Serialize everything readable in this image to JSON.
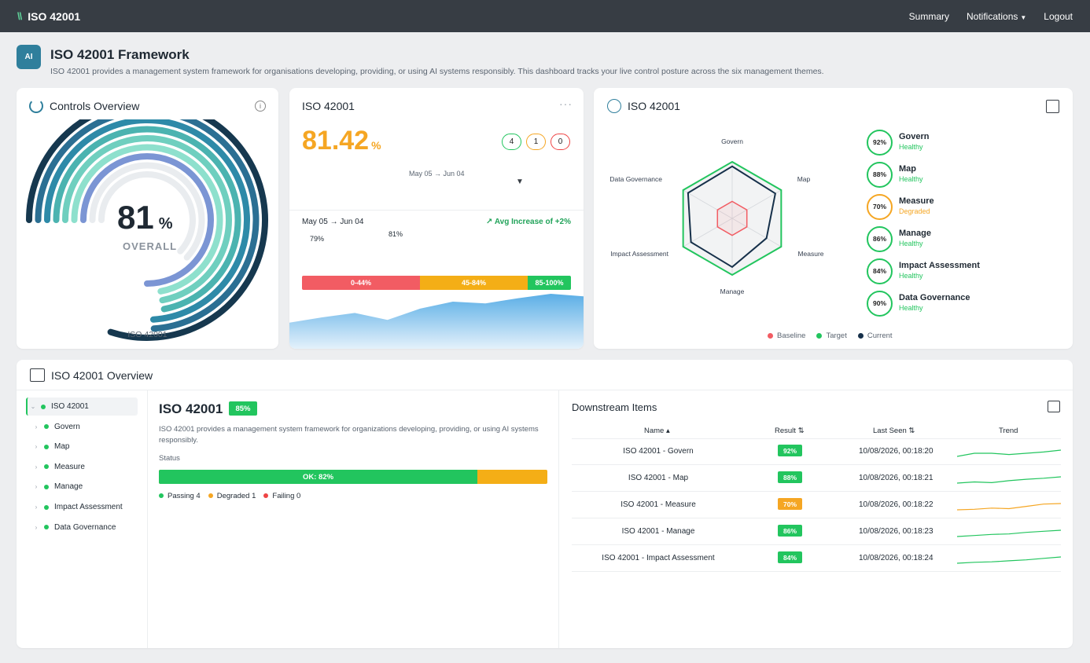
{
  "app": {
    "title": "ISO 42001",
    "nav": [
      "Summary",
      "Notifications",
      "Logout"
    ]
  },
  "header": {
    "badge": "AI",
    "title": "ISO 42001 Framework",
    "description": "ISO 42001 provides a management system framework for organisations developing, providing, or using AI systems responsibly. This dashboard tracks your live control posture across the six management themes."
  },
  "controls_overview": {
    "title": "Controls Overview",
    "value": "81",
    "unit": "%",
    "sublabel": "OVERALL",
    "footer": "ISO 42001",
    "rings": [
      {
        "color": "#e9ecef",
        "level": 0.62
      },
      {
        "color": "#e9ecef",
        "level": 0.62
      },
      {
        "color": "#7b95d4",
        "level": 0.75
      },
      {
        "color": "#8ee0cd",
        "level": 0.72
      },
      {
        "color": "#6fcfbf",
        "level": 0.72
      },
      {
        "color": "#4bb3b0",
        "level": 0.72
      },
      {
        "color": "#2e8aa8",
        "level": 0.74
      },
      {
        "color": "#2b6f93",
        "level": 0.74
      },
      {
        "color": "#16384f",
        "level": 0.8
      }
    ]
  },
  "score_card": {
    "title": "ISO 42001",
    "score": "81.42",
    "unit": "%",
    "counts": [
      {
        "value": "4",
        "color": "#22c55e"
      },
      {
        "value": "1",
        "color": "#f5a623"
      },
      {
        "value": "0",
        "color": "#ef4444"
      }
    ],
    "date_range": "May 05 → Jun 04",
    "ranges": [
      {
        "label": "0-44%",
        "color": "#f25c63"
      },
      {
        "label": "45-84%",
        "color": "#f4ae16"
      },
      {
        "label": "85-100%",
        "color": "#22c55e"
      }
    ],
    "period": "May 05 → Jun 04",
    "trend_label": "Avg Increase of +2%",
    "annotations": [
      "79%",
      "81%"
    ],
    "trend_values": [
      30,
      36,
      41,
      33,
      46,
      54,
      52,
      58,
      63,
      60
    ]
  },
  "radar_card": {
    "title": "ISO 42001",
    "axes": [
      "Govern",
      "Map",
      "Measure",
      "Manage",
      "Impact Assessment",
      "Data Governance"
    ],
    "axis_max": 100,
    "baseline": [
      30,
      30,
      30,
      30,
      30,
      30
    ],
    "target": [
      100,
      100,
      100,
      100,
      100,
      100
    ],
    "current": [
      92,
      88,
      70,
      86,
      84,
      90
    ],
    "legend": [
      {
        "name": "Baseline",
        "color": "#f25c63"
      },
      {
        "name": "Target",
        "color": "#22c55e"
      },
      {
        "name": "Current",
        "color": "#16304a"
      }
    ],
    "themes": [
      {
        "name": "Govern",
        "pct": "92%",
        "status": "Healthy",
        "color": "#22c55e"
      },
      {
        "name": "Map",
        "pct": "88%",
        "status": "Healthy",
        "color": "#22c55e"
      },
      {
        "name": "Measure",
        "pct": "70%",
        "status": "Degraded",
        "color": "#f5a623"
      },
      {
        "name": "Manage",
        "pct": "86%",
        "status": "Healthy",
        "color": "#22c55e"
      },
      {
        "name": "Impact Assessment",
        "pct": "84%",
        "status": "Healthy",
        "color": "#22c55e"
      },
      {
        "name": "Data Governance",
        "pct": "90%",
        "status": "Healthy",
        "color": "#22c55e"
      }
    ]
  },
  "overview": {
    "title": "ISO 42001 Overview",
    "tree": [
      {
        "label": "ISO 42001",
        "root": true
      },
      {
        "label": "Govern"
      },
      {
        "label": "Map"
      },
      {
        "label": "Measure"
      },
      {
        "label": "Manage"
      },
      {
        "label": "Impact Assessment"
      },
      {
        "label": "Data Governance"
      }
    ],
    "detail": {
      "title": "ISO 42001",
      "badge": "85%",
      "description": "ISO 42001 provides a management system framework for organizations developing, providing, or using AI systems responsibly.",
      "status_label": "Status",
      "bar_ok_label": "OK: 82%",
      "ok_fraction": 0.82,
      "legend": [
        {
          "label": "Passing 4",
          "color": "#22c55e"
        },
        {
          "label": "Degraded 1",
          "color": "#f5a623"
        },
        {
          "label": "Failing 0",
          "color": "#ef4444"
        }
      ]
    },
    "downstream": {
      "title": "Downstream Items",
      "columns": [
        "Name ▴",
        "Result ⇅",
        "Last Seen ⇅",
        "Trend"
      ],
      "rows": [
        {
          "name": "ISO 42001 - Govern",
          "result": "92%",
          "color": "#22c55e",
          "seen": "10/08/2026, 00:18:20",
          "trend": [
            4,
            5,
            5,
            4.6,
            5,
            5.4,
            6
          ]
        },
        {
          "name": "ISO 42001 - Map",
          "result": "88%",
          "color": "#22c55e",
          "seen": "10/08/2026, 00:18:21",
          "trend": [
            3,
            3.5,
            3.2,
            4,
            4.6,
            5,
            5.6
          ]
        },
        {
          "name": "ISO 42001 - Measure",
          "result": "70%",
          "color": "#f5a623",
          "seen": "10/08/2026, 00:18:22",
          "trend": [
            3,
            3.2,
            3.6,
            3.4,
            4.2,
            5,
            5.2
          ]
        },
        {
          "name": "ISO 42001 - Manage",
          "result": "86%",
          "color": "#22c55e",
          "seen": "10/08/2026, 00:18:23",
          "trend": [
            4,
            4.2,
            4.4,
            4.5,
            4.8,
            5,
            5.2
          ]
        },
        {
          "name": "ISO 42001 - Impact Assessment",
          "result": "84%",
          "color": "#22c55e",
          "seen": "10/08/2026, 00:18:24",
          "trend": [
            3,
            3.4,
            3.6,
            4,
            4.4,
            5,
            5.6
          ]
        }
      ]
    }
  }
}
